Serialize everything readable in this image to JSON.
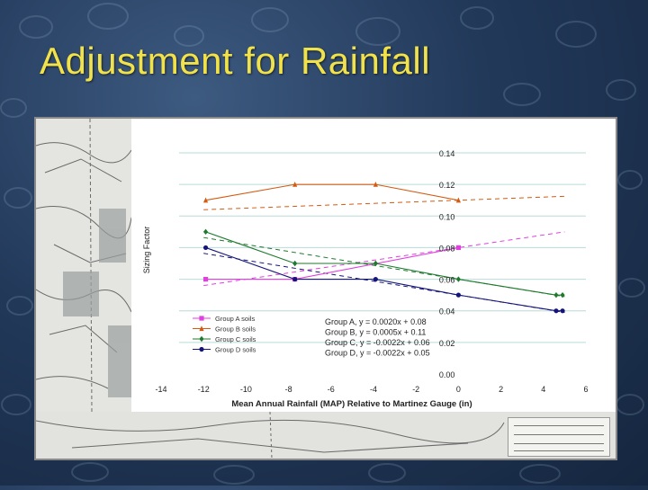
{
  "slide": {
    "title": "Adjustment for Rainfall"
  },
  "colors": {
    "title": "#f2e24a",
    "group_a": "#e040e0",
    "group_b": "#d45a10",
    "group_c": "#1f7a2e",
    "group_d": "#14147a",
    "gridline": "#b8dcd8"
  },
  "chart_data": {
    "type": "scatter",
    "xlabel": "Mean Annual Rainfall (MAP) Relative to Martinez Gauge (in)",
    "ylabel": "Sizing Factor",
    "xlim": [
      -14,
      6
    ],
    "ylim": [
      0,
      0.14
    ],
    "x_ticks": [
      "-14",
      "-12",
      "-10",
      "-8",
      "-6",
      "-4",
      "-2",
      "0",
      "2",
      "4",
      "6"
    ],
    "y_ticks": [
      "0.00",
      "0.02",
      "0.04",
      "0.06",
      "0.08",
      "0.10",
      "0.12",
      "0.14"
    ],
    "grid": "horizontal",
    "legend_position": "bottom-left",
    "series": [
      {
        "name": "Group A soils",
        "color": "#e040e0",
        "marker": "square",
        "equation": "Group A, y = 0.0020x + 0.08",
        "points": [
          [
            -11.9,
            0.06
          ],
          [
            -7.7,
            0.06
          ],
          [
            0,
            0.08
          ]
        ],
        "trend": {
          "slope": 0.002,
          "intercept": 0.08
        }
      },
      {
        "name": "Group B soils",
        "color": "#d45a10",
        "marker": "triangle",
        "equation": "Group B, y = 0.0005x + 0.11",
        "points": [
          [
            -11.9,
            0.11
          ],
          [
            -7.7,
            0.12
          ],
          [
            -3.9,
            0.12
          ],
          [
            0,
            0.11
          ]
        ],
        "trend": {
          "slope": 0.0005,
          "intercept": 0.11
        }
      },
      {
        "name": "Group C soils",
        "color": "#1f7a2e",
        "marker": "diamond",
        "equation": "Group C, y = -0.0022x + 0.06",
        "points": [
          [
            -11.9,
            0.09
          ],
          [
            -7.7,
            0.07
          ],
          [
            -3.9,
            0.07
          ],
          [
            0,
            0.06
          ],
          [
            4.6,
            0.05
          ],
          [
            4.9,
            0.05
          ]
        ],
        "trend": {
          "slope": -0.0022,
          "intercept": 0.06
        }
      },
      {
        "name": "Group D soils",
        "color": "#14147a",
        "marker": "circle",
        "equation": "Group D, y = -0.0022x + 0.05",
        "points": [
          [
            -11.9,
            0.08
          ],
          [
            -7.7,
            0.06
          ],
          [
            -3.9,
            0.06
          ],
          [
            0,
            0.05
          ],
          [
            4.6,
            0.04
          ],
          [
            4.9,
            0.04
          ]
        ],
        "trend": {
          "slope": -0.0022,
          "intercept": 0.05
        }
      }
    ]
  }
}
